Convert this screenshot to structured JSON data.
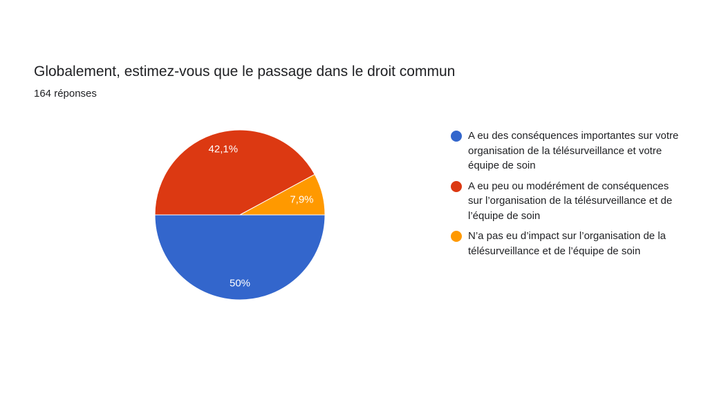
{
  "header": {
    "title": "Globalement, estimez-vous que le passage dans le droit commun",
    "responses": "164 réponses"
  },
  "chart_data": {
    "type": "pie",
    "slices": [
      {
        "label": "A eu des conséquences importantes sur votre organisation de la télésurveillance et votre équipe de soin",
        "value": 50,
        "display": "50%",
        "color": "#3366cc"
      },
      {
        "label": "A eu peu ou modérément de conséquences sur l’organisation de la télésurveillance et de l’équipe de soin",
        "value": 42.1,
        "display": "42,1%",
        "color": "#dc3912"
      },
      {
        "label": "N’a pas eu d’impact sur l’organisation de la télésurveillance et de l’équipe de soin",
        "value": 7.9,
        "display": "7,9%",
        "color": "#ff9900"
      }
    ],
    "legend_position": "right"
  }
}
